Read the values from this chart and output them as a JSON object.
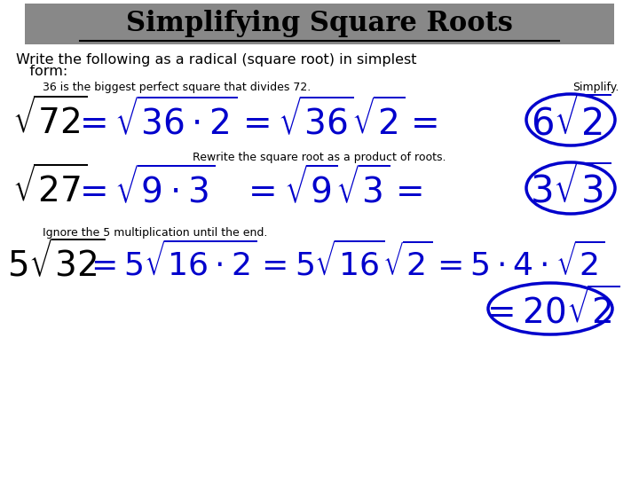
{
  "title": "Simplifying Square Roots",
  "subtitle1": "Write the following as a radical (square root) in simplest",
  "subtitle2": "   form:",
  "title_bg_color": "#888888",
  "title_text_color": "#000000",
  "blue_color": "#0000CC",
  "black_color": "#000000",
  "bg_color": "#ffffff",
  "note1": "36 is the biggest perfect square that divides 72.",
  "note1_simplify": "Simplify.",
  "note2": "Rewrite the square root as a product of roots.",
  "note3": "Ignore the 5 multiplication until the end."
}
